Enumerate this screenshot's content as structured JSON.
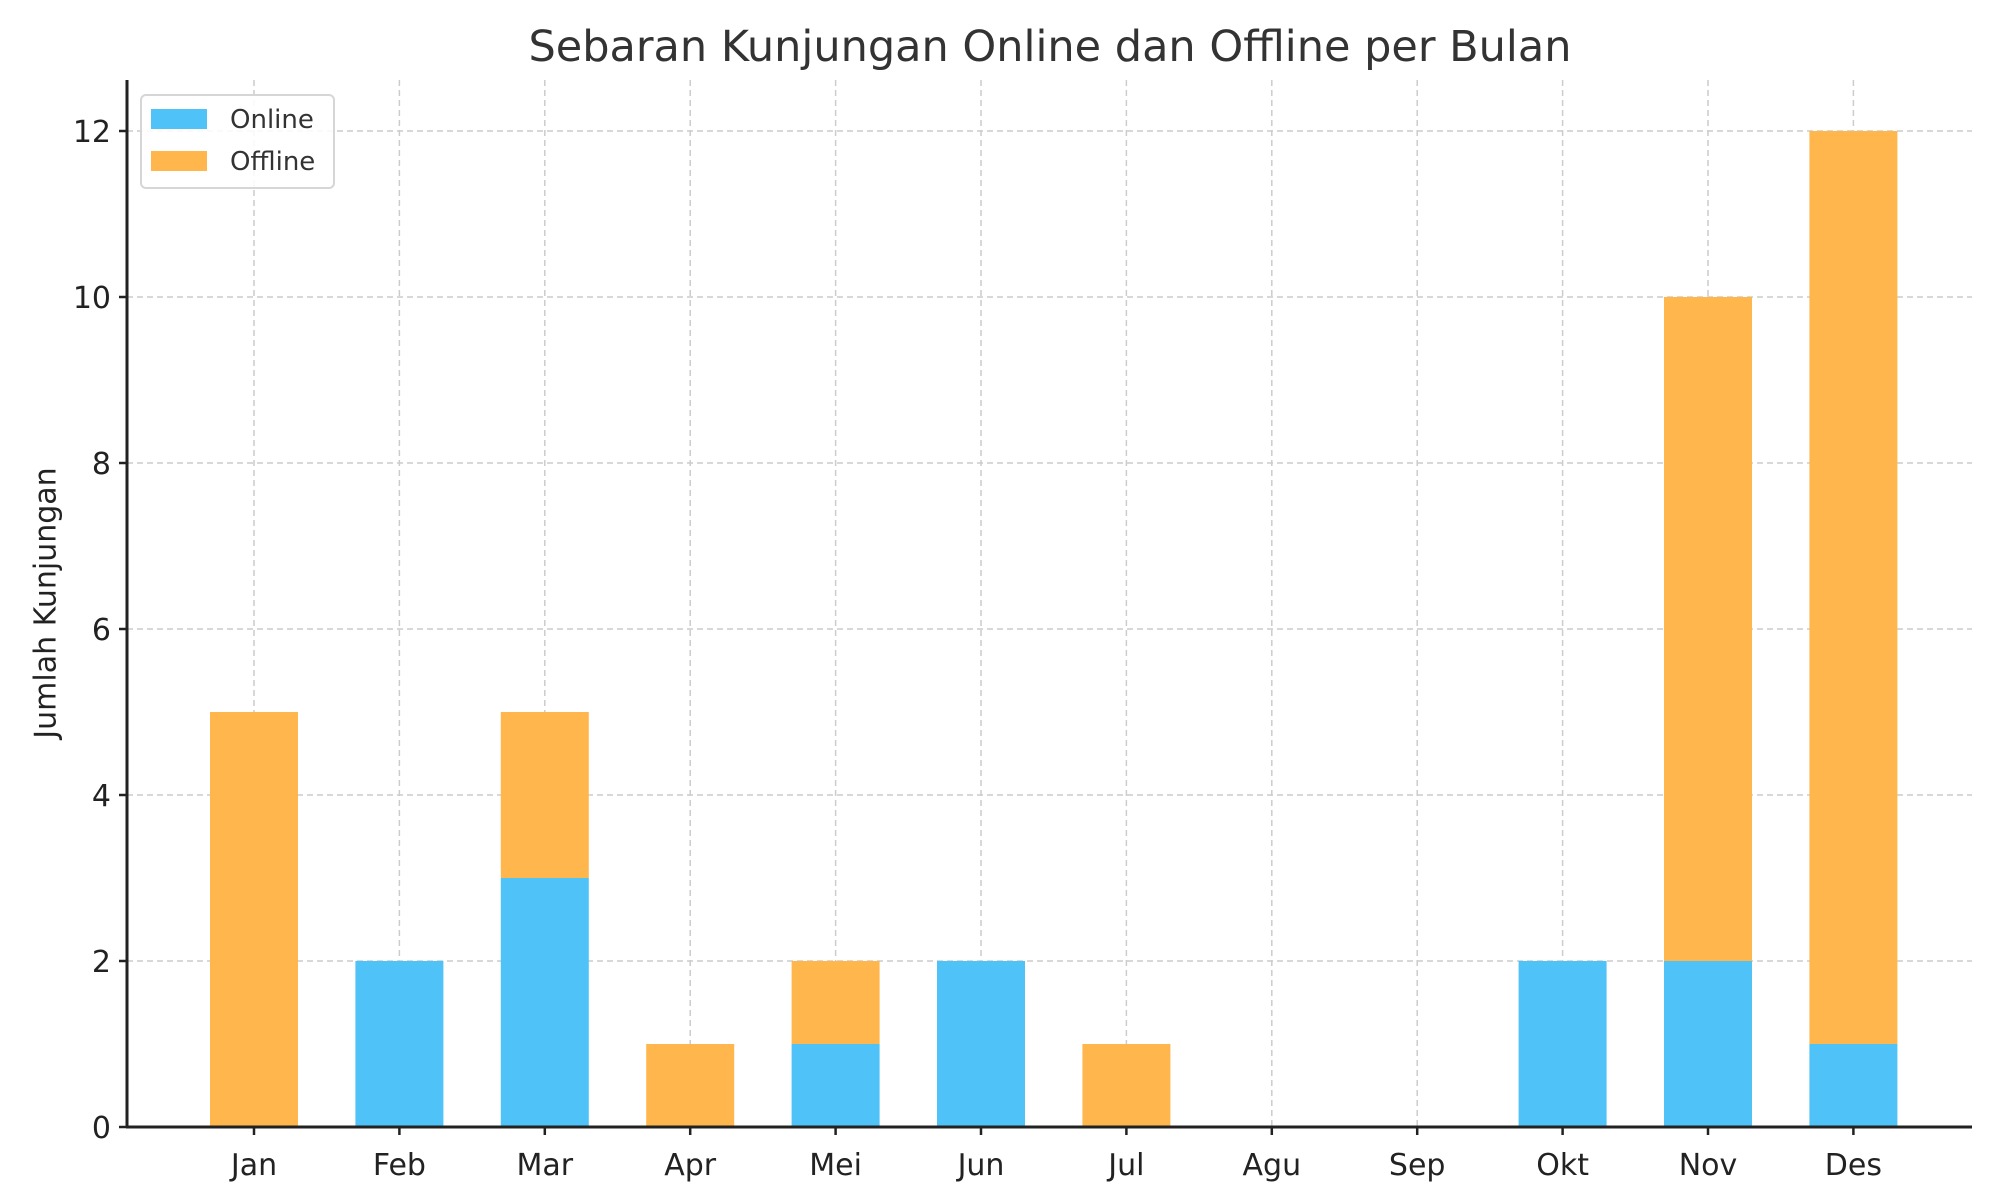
{
  "chart_data": {
    "type": "bar",
    "stacked": true,
    "title": "Sebaran Kunjungan Online dan Offline per Bulan",
    "xlabel": "",
    "ylabel": "Jumlah Kunjungan",
    "categories": [
      "Jan",
      "Feb",
      "Mar",
      "Apr",
      "Mei",
      "Jun",
      "Jul",
      "Agu",
      "Sep",
      "Okt",
      "Nov",
      "Des"
    ],
    "series": [
      {
        "name": "Online",
        "color": "#4FC3F7",
        "values": [
          0,
          2,
          3,
          0,
          1,
          2,
          0,
          0,
          0,
          2,
          2,
          1
        ]
      },
      {
        "name": "Offline",
        "color": "#FFB74D",
        "values": [
          5,
          0,
          2,
          1,
          1,
          0,
          1,
          0,
          0,
          0,
          8,
          11
        ]
      }
    ],
    "totals": [
      5,
      2,
      5,
      1,
      2,
      2,
      1,
      0,
      0,
      2,
      10,
      12
    ],
    "ylim": [
      0,
      12.6
    ],
    "yticks": [
      0,
      2,
      4,
      6,
      8,
      10,
      12
    ],
    "grid": true,
    "legend_position": "upper left"
  },
  "legend": {
    "items": [
      {
        "label": "Online",
        "color": "#4FC3F7"
      },
      {
        "label": "Offline",
        "color": "#FFB74D"
      }
    ]
  }
}
